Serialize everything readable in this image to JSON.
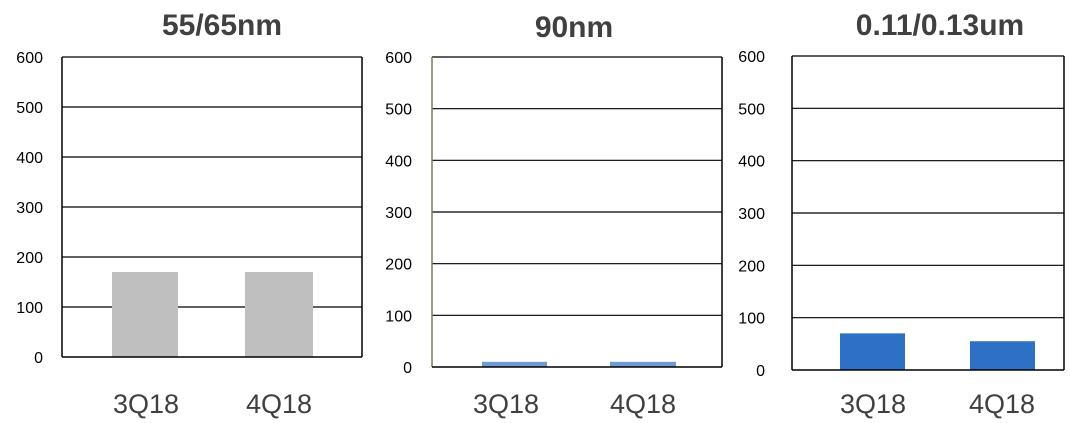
{
  "chart_data": [
    {
      "type": "bar",
      "title": "55/65nm",
      "categories": [
        "3Q18",
        "4Q18"
      ],
      "values": [
        170,
        170
      ],
      "ylim": [
        0,
        600
      ],
      "yticks": [
        "0",
        "100",
        "200",
        "300",
        "400",
        "500",
        "600"
      ],
      "grid": true,
      "color": "#BFBFBF"
    },
    {
      "type": "bar",
      "title": "90nm",
      "categories": [
        "3Q18",
        "4Q18"
      ],
      "values": [
        10,
        10
      ],
      "ylim": [
        0,
        600
      ],
      "yticks": [
        "0",
        "100",
        "200",
        "300",
        "400",
        "500",
        "600"
      ],
      "grid": true,
      "color": "#6E9BD6"
    },
    {
      "type": "bar",
      "title": "0.11/0.13um",
      "categories": [
        "3Q18",
        "4Q18"
      ],
      "values": [
        70,
        55
      ],
      "ylim": [
        0,
        600
      ],
      "yticks": [
        "0",
        "100",
        "200",
        "300",
        "400",
        "500",
        "600"
      ],
      "grid": true,
      "color": "#2E70C5"
    }
  ]
}
